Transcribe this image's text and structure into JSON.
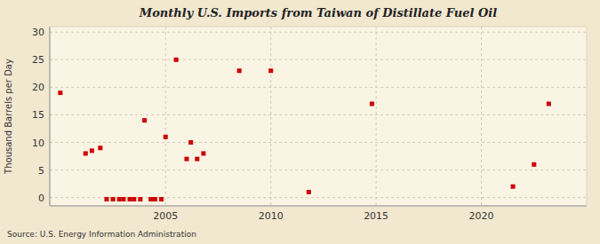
{
  "chart_data": {
    "type": "scatter",
    "title": "Monthly U.S. Imports from Taiwan of Distillate Fuel Oil",
    "ylabel": "Thousand Barrels per Day",
    "source": "Source: U.S. Energy Information Administration",
    "color": "#cc0000",
    "marker": "square",
    "grid": true,
    "xlim": [
      1999.5,
      2025.0
    ],
    "ylim": [
      -1.5,
      31
    ],
    "xticks": [
      2005,
      2010,
      2015,
      2020
    ],
    "yticks": [
      0,
      5,
      10,
      15,
      20,
      25,
      30
    ],
    "x": [
      2000.0,
      2001.2,
      2001.5,
      2001.9,
      2002.2,
      2002.5,
      2002.8,
      2003.0,
      2003.3,
      2003.5,
      2003.8,
      2004.0,
      2004.3,
      2004.5,
      2004.8,
      2005.0,
      2005.5,
      2006.0,
      2006.2,
      2006.5,
      2006.8,
      2008.5,
      2010.0,
      2011.8,
      2014.8,
      2021.5,
      2022.5,
      2023.2
    ],
    "values": [
      19.0,
      8.0,
      8.5,
      9.0,
      -0.3,
      -0.3,
      -0.3,
      -0.3,
      -0.3,
      -0.3,
      -0.3,
      14.0,
      -0.3,
      -0.3,
      -0.3,
      11.0,
      25.0,
      7.0,
      10.0,
      7.0,
      8.0,
      23.0,
      23.0,
      1.0,
      17.0,
      2.0,
      6.0,
      17.0
    ]
  }
}
